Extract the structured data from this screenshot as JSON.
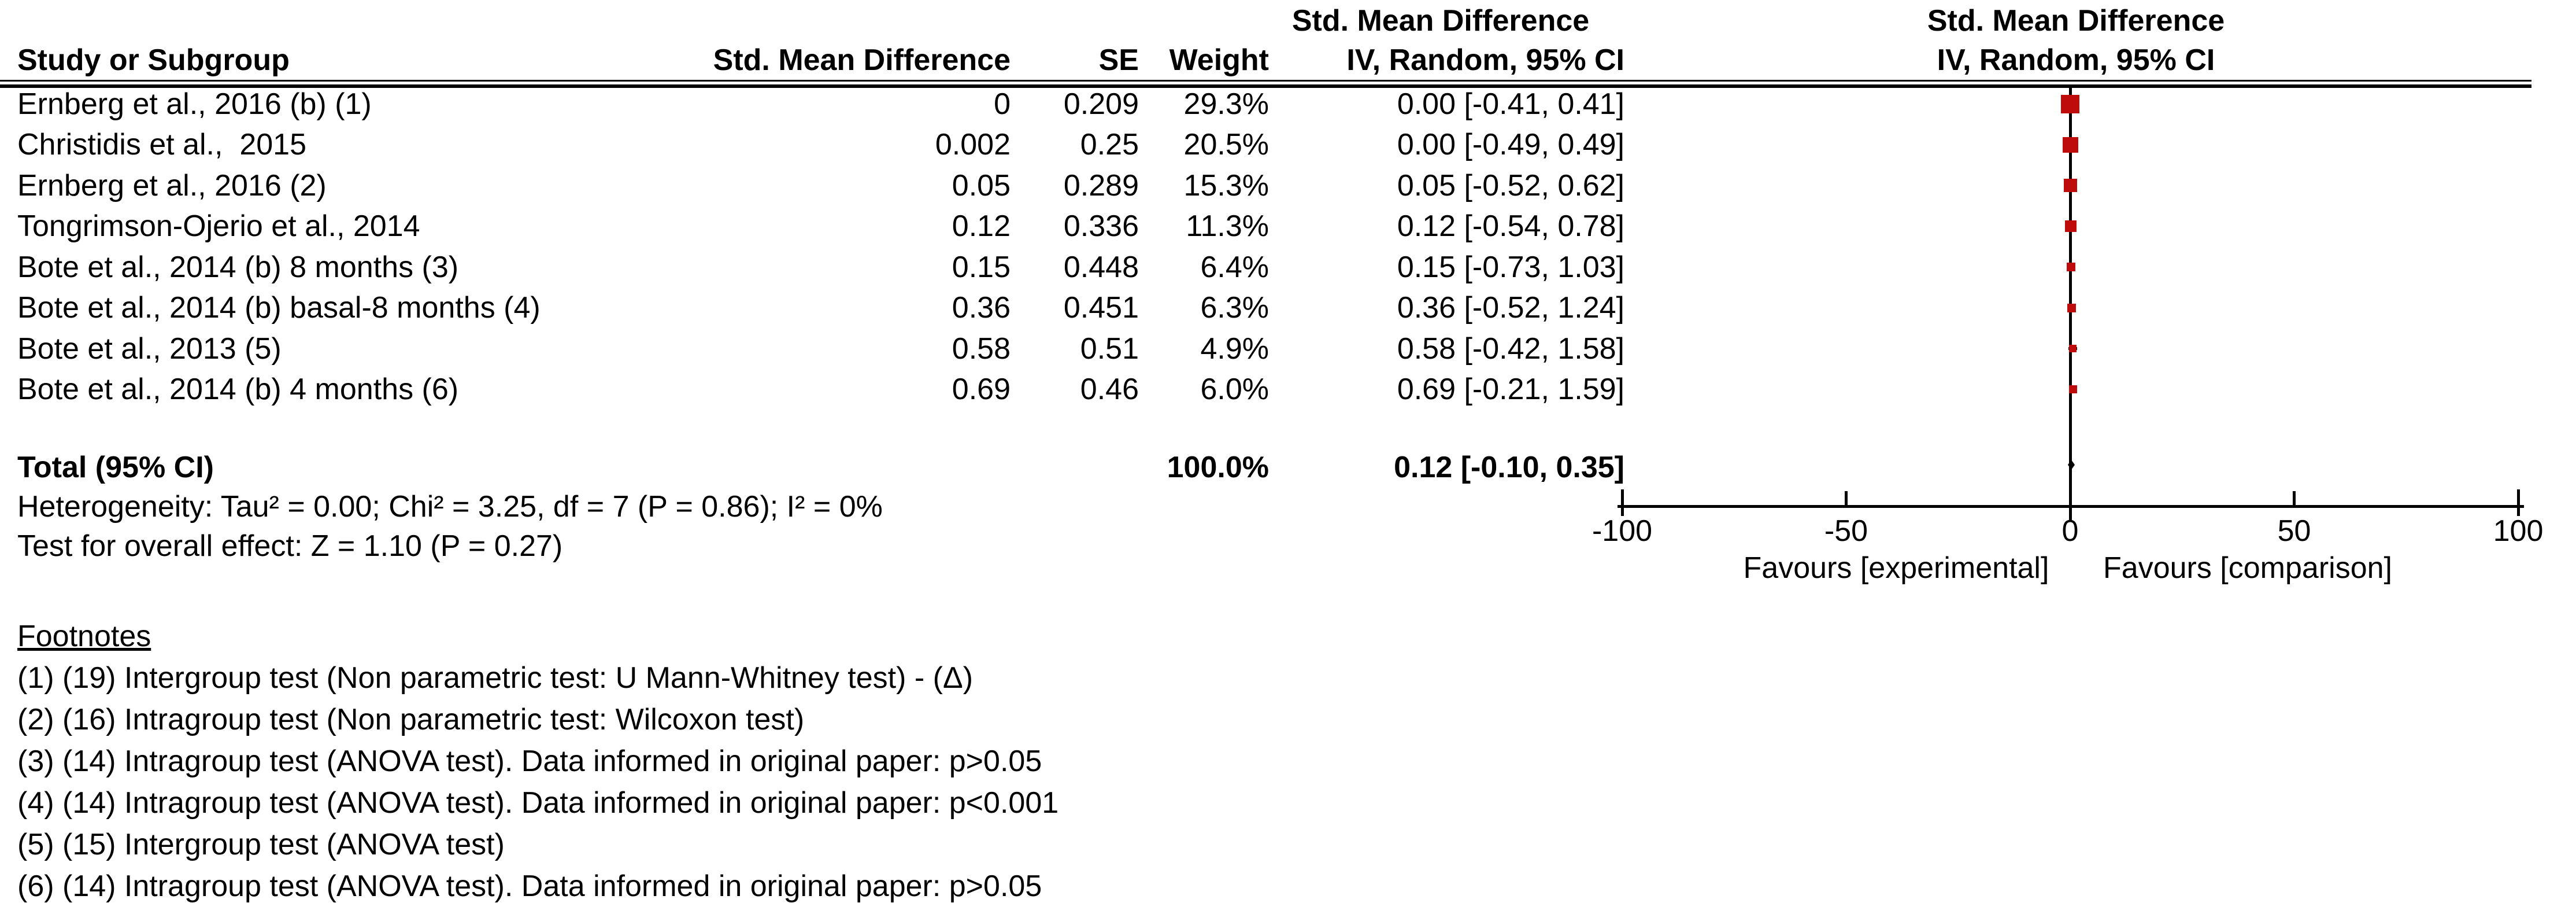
{
  "header": {
    "col_study": "Study or Subgroup",
    "col_smd": "Std. Mean Difference",
    "col_se": "SE",
    "col_weight": "Weight",
    "col_ci_top": "Std. Mean Difference",
    "col_ci": "IV, Random, 95% CI",
    "plot_top": "Std. Mean Difference",
    "plot_sub": "IV, Random, 95% CI"
  },
  "chart_data": {
    "type": "scatter",
    "subtype": "forest-plot",
    "title": "Std. Mean Difference IV, Random, 95% CI",
    "x_axis": {
      "ticks": [
        -100,
        -50,
        0,
        50,
        100
      ],
      "range": [
        -100,
        100
      ]
    },
    "legend": "none",
    "grid": false,
    "marker_color": "#BE0B0B",
    "line_color": "#000000",
    "studies": [
      {
        "name": "Ernberg et al., 2016 (b) (1)",
        "smd": "0",
        "smd_value": 0,
        "se": "0.209",
        "weight": "29.3%",
        "weight_value": 29.3,
        "ci": "0.00 [-0.41, 0.41]",
        "ci_low": -0.41,
        "ci_high": 0.41
      },
      {
        "name": "Christidis et al.,  2015",
        "smd": "0.002",
        "smd_value": 0.002,
        "se": "0.25",
        "weight": "20.5%",
        "weight_value": 20.5,
        "ci": "0.00 [-0.49, 0.49]",
        "ci_low": -0.49,
        "ci_high": 0.49
      },
      {
        "name": "Ernberg et al., 2016 (2)",
        "smd": "0.05",
        "smd_value": 0.05,
        "se": "0.289",
        "weight": "15.3%",
        "weight_value": 15.3,
        "ci": "0.05 [-0.52, 0.62]",
        "ci_low": -0.52,
        "ci_high": 0.62
      },
      {
        "name": "Tongrimson-Ojerio et al., 2014",
        "smd": "0.12",
        "smd_value": 0.12,
        "se": "0.336",
        "weight": "11.3%",
        "weight_value": 11.3,
        "ci": "0.12 [-0.54, 0.78]",
        "ci_low": -0.54,
        "ci_high": 0.78
      },
      {
        "name": "Bote et al., 2014 (b) 8 months (3)",
        "smd": "0.15",
        "smd_value": 0.15,
        "se": "0.448",
        "weight": "6.4%",
        "weight_value": 6.4,
        "ci": "0.15 [-0.73, 1.03]",
        "ci_low": -0.73,
        "ci_high": 1.03
      },
      {
        "name": "Bote et al., 2014 (b) basal-8 months (4)",
        "smd": "0.36",
        "smd_value": 0.36,
        "se": "0.451",
        "weight": "6.3%",
        "weight_value": 6.3,
        "ci": "0.36 [-0.52, 1.24]",
        "ci_low": -0.52,
        "ci_high": 1.24
      },
      {
        "name": "Bote et al., 2013 (5)",
        "smd": "0.58",
        "smd_value": 0.58,
        "se": "0.51",
        "weight": "4.9%",
        "weight_value": 4.9,
        "ci": "0.58 [-0.42, 1.58]",
        "ci_low": -0.42,
        "ci_high": 1.58
      },
      {
        "name": "Bote et al., 2014 (b) 4 months (6)",
        "smd": "0.69",
        "smd_value": 0.69,
        "se": "0.46",
        "weight": "6.0%",
        "weight_value": 6.0,
        "ci": "0.69 [-0.21, 1.59]",
        "ci_low": -0.21,
        "ci_high": 1.59
      }
    ],
    "total": {
      "label": "Total (95% CI)",
      "weight": "100.0%",
      "ci": "0.12 [-0.10, 0.35]",
      "smd_value": 0.12,
      "ci_low": -0.1,
      "ci_high": 0.35
    },
    "favours_left": "Favours [experimental]",
    "favours_right": "Favours [comparison]"
  },
  "stats": {
    "heterogeneity": "Heterogeneity: Tau² = 0.00; Chi² = 3.25, df = 7 (P = 0.86); I² = 0%",
    "overall_effect": "Test for overall effect: Z = 1.10 (P = 0.27)"
  },
  "footnotes": {
    "title": "Footnotes",
    "items": [
      "(1) (19) Intergroup test (Non parametric test: U Mann-Whitney test) - (Δ)",
      "(2) (16) Intragroup test (Non parametric test: Wilcoxon test)",
      "(3) (14) Intragroup test (ANOVA test). Data informed in original paper: p>0.05",
      "(4) (14) Intragroup test (ANOVA test). Data informed in original paper: p<0.001",
      "(5) (15) Intergroup test (ANOVA test)",
      "(6) (14) Intragroup test (ANOVA test). Data informed in original paper: p>0.05"
    ]
  }
}
